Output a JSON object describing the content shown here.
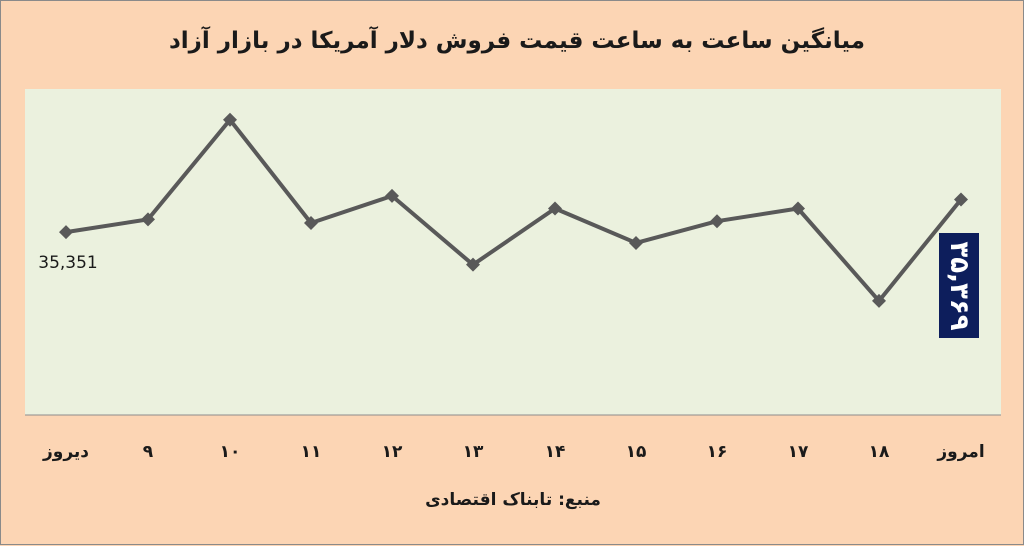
{
  "chart_data": {
    "type": "line",
    "title": "میانگین ساعت به ساعت قیمت فروش دلار آمریکا در بازار آزاد",
    "categories": [
      "دیروز",
      "۹",
      "۱۰",
      "۱۱",
      "۱۲",
      "۱۳",
      "۱۴",
      "۱۵",
      "۱۶",
      "۱۷",
      "۱۸",
      "امروز"
    ],
    "values": [
      35351,
      35358,
      35413,
      35356,
      35371,
      35333,
      35364,
      35345,
      35357,
      35364,
      35313,
      35369
    ],
    "ylim": [
      35250,
      35430
    ],
    "grid": false,
    "legend": "none",
    "start_label": "35,351",
    "end_label": "۳۵,۳۶۹",
    "source": "منبع: تابناک اقتصادی",
    "colors": {
      "background": "#fcd5b4",
      "plot_area": "#ebf1de",
      "line": "#595959",
      "end_label_box": "#0d1e5c"
    }
  }
}
